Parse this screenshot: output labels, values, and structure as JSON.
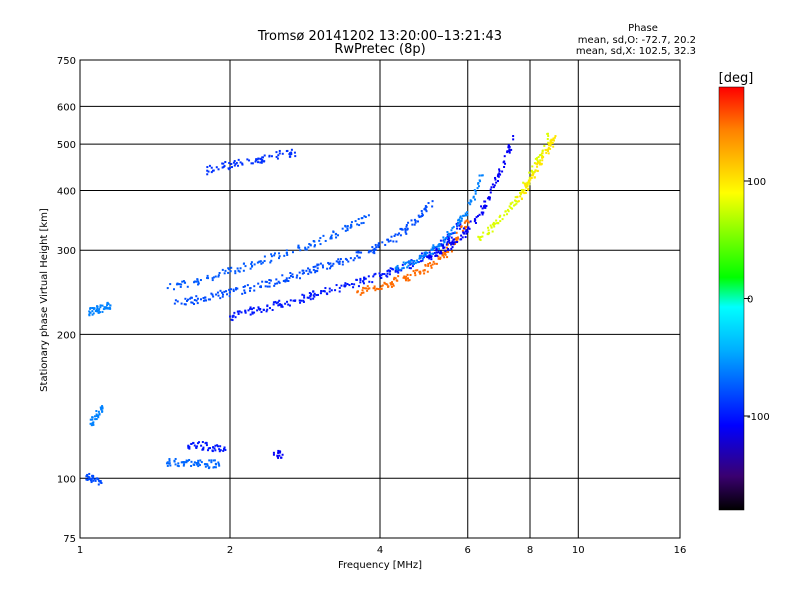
{
  "chart_data": {
    "type": "scatter",
    "title": "Tromsø 20141202 13:20:00–13:21:43",
    "subtitle": "RwPretec (8p)",
    "xlabel": "Frequency [MHz]",
    "ylabel": "Stationary phase Virtual Height [km]",
    "x_scale": "log",
    "y_scale": "log",
    "xlim": [
      1,
      16
    ],
    "ylim": [
      75,
      750
    ],
    "x_ticks": [
      1,
      2,
      4,
      6,
      8,
      10,
      16
    ],
    "y_ticks": [
      75,
      100,
      200,
      300,
      400,
      500,
      600,
      750
    ],
    "grid": true,
    "phase_box": {
      "title": "Phase",
      "line1": "mean, sd,O: -72.7, 20.2",
      "line2": "mean, sd,X: 102.5, 32.3"
    },
    "colorbar": {
      "label": "[deg]",
      "ticks": [
        100,
        0,
        -100
      ],
      "range": [
        -180,
        180
      ],
      "colormap": "rainbow",
      "stops": [
        "#000000",
        "#3a0070",
        "#0000ff",
        "#00b0ff",
        "#00ffff",
        "#00ff00",
        "#ffff00",
        "#ff8000",
        "#ff0000"
      ]
    },
    "series": [
      {
        "x": [
          2.0,
          2.15,
          2.3,
          2.5,
          2.7,
          2.9,
          3.1,
          3.4,
          3.7,
          4.0,
          4.3,
          4.6,
          4.9,
          5.2,
          5.5,
          5.8
        ],
        "y": [
          218,
          222,
          226,
          230,
          235,
          240,
          246,
          252,
          258,
          265,
          272,
          280,
          290,
          302,
          318,
          340
        ],
        "phase": -100
      },
      {
        "x": [
          1.55,
          1.7,
          1.85,
          2.0,
          2.2,
          2.4,
          2.6,
          2.8,
          3.0,
          3.3,
          3.6,
          3.9,
          4.2,
          4.5,
          4.8,
          5.1
        ],
        "y": [
          232,
          236,
          240,
          245,
          250,
          256,
          262,
          268,
          275,
          283,
          292,
          302,
          314,
          330,
          352,
          380
        ],
        "phase": -80
      },
      {
        "x": [
          1.5,
          1.7,
          1.9,
          2.1,
          2.3,
          2.6,
          2.9,
          3.2,
          3.5,
          3.8
        ],
        "y": [
          250,
          258,
          266,
          275,
          284,
          296,
          308,
          322,
          338,
          355
        ],
        "phase": -75
      },
      {
        "x": [
          3.6,
          3.9,
          4.2,
          4.5,
          4.8,
          5.1,
          5.4,
          5.7,
          6.0
        ],
        "y": [
          245,
          250,
          256,
          262,
          270,
          280,
          295,
          315,
          345
        ],
        "phase": 150
      },
      {
        "x": [
          4.3,
          4.6,
          4.9,
          5.2,
          5.5,
          5.8,
          6.1,
          6.4
        ],
        "y": [
          275,
          282,
          292,
          305,
          322,
          345,
          380,
          430
        ],
        "phase": -60
      },
      {
        "x": [
          5.0,
          5.3,
          5.6,
          5.9,
          6.2,
          6.5,
          6.8,
          7.1,
          7.4
        ],
        "y": [
          290,
          298,
          310,
          325,
          345,
          372,
          410,
          460,
          520
        ],
        "phase": -110
      },
      {
        "x": [
          6.3,
          6.7,
          7.1,
          7.5,
          7.9,
          8.3,
          8.7
        ],
        "y": [
          320,
          335,
          355,
          380,
          415,
          460,
          520
        ],
        "phase": 80
      },
      {
        "x": [
          7.6,
          7.9,
          8.2,
          8.5,
          8.8,
          9.0
        ],
        "y": [
          380,
          410,
          440,
          470,
          500,
          520
        ],
        "phase": 100
      },
      {
        "x": [
          1.8,
          1.95,
          2.1,
          2.3,
          2.5,
          2.7
        ],
        "y": [
          440,
          450,
          458,
          466,
          474,
          480
        ],
        "phase": -90
      },
      {
        "x": [
          1.65,
          1.75,
          1.85,
          1.95
        ],
        "y": [
          117,
          117,
          116,
          116
        ],
        "phase": -100
      },
      {
        "x": [
          1.5,
          1.6,
          1.7,
          1.8,
          1.9
        ],
        "y": [
          108,
          108,
          108,
          107,
          107
        ],
        "phase": -70
      },
      {
        "x": [
          1.03,
          1.06,
          1.1
        ],
        "y": [
          101,
          100,
          98
        ],
        "phase": -80
      },
      {
        "x": [
          1.05,
          1.08,
          1.12,
          1.15
        ],
        "y": [
          222,
          225,
          228,
          230
        ],
        "phase": -60
      },
      {
        "x": [
          1.05,
          1.08,
          1.11
        ],
        "y": [
          130,
          135,
          140
        ],
        "phase": -60
      },
      {
        "x": [
          2.45,
          2.55
        ],
        "y": [
          112,
          112
        ],
        "phase": -110
      }
    ]
  }
}
